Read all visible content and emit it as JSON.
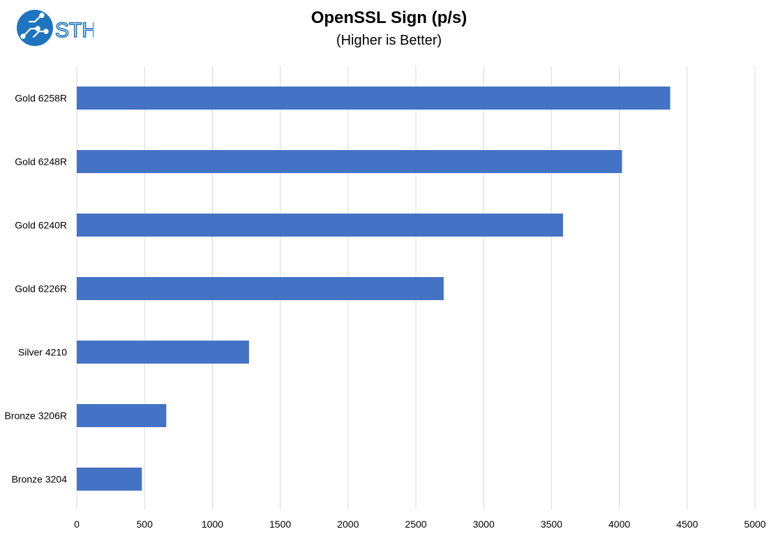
{
  "logo": {
    "text": "STH",
    "color": "#1f74c0"
  },
  "chart_data": {
    "type": "bar",
    "orientation": "horizontal",
    "title": "OpenSSL Sign (p/s)",
    "subtitle": "(Higher is Better)",
    "categories": [
      "Gold 6258R",
      "Gold 6248R",
      "Gold 6240R",
      "Gold 6226R",
      "Silver 4210",
      "Bronze 3206R",
      "Bronze 3204"
    ],
    "values": [
      4375,
      4020,
      3585,
      2705,
      1270,
      660,
      480
    ],
    "xlim": [
      0,
      5000
    ],
    "xticks": [
      0,
      500,
      1000,
      1500,
      2000,
      2500,
      3000,
      3500,
      4000,
      4500,
      5000
    ],
    "grid": "vertical",
    "bar_color": "#4472c4",
    "legend": "none"
  }
}
